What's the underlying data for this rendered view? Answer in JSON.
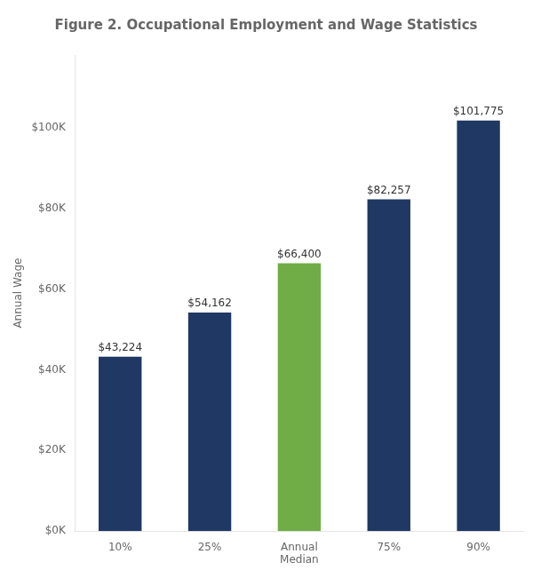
{
  "chart_data": {
    "type": "bar",
    "title": "Figure 2. Occupational Employment and Wage Statistics",
    "y_label": "Annual Wage",
    "categories": [
      "10%",
      "25%",
      "Annual\nMedian",
      "75%",
      "90%"
    ],
    "values": [
      43224,
      54162,
      66400,
      82257,
      101775
    ],
    "value_labels": [
      "$43,224",
      "$54,162",
      "$66,400",
      "$82,257",
      "$101,775"
    ],
    "data_labels": true,
    "colors": [
      "#1f3864",
      "#1f3864",
      "#70ad47",
      "#1f3864",
      "#1f3864"
    ],
    "ylim": [
      0,
      118000
    ],
    "yticks": [
      {
        "value": 0,
        "label": "$0K"
      },
      {
        "value": 20000,
        "label": "$20K"
      },
      {
        "value": 40000,
        "label": "$40K"
      },
      {
        "value": 60000,
        "label": "$60K"
      },
      {
        "value": 80000,
        "label": "$80K"
      },
      {
        "value": 100000,
        "label": "$100K"
      }
    ],
    "grid": false
  }
}
